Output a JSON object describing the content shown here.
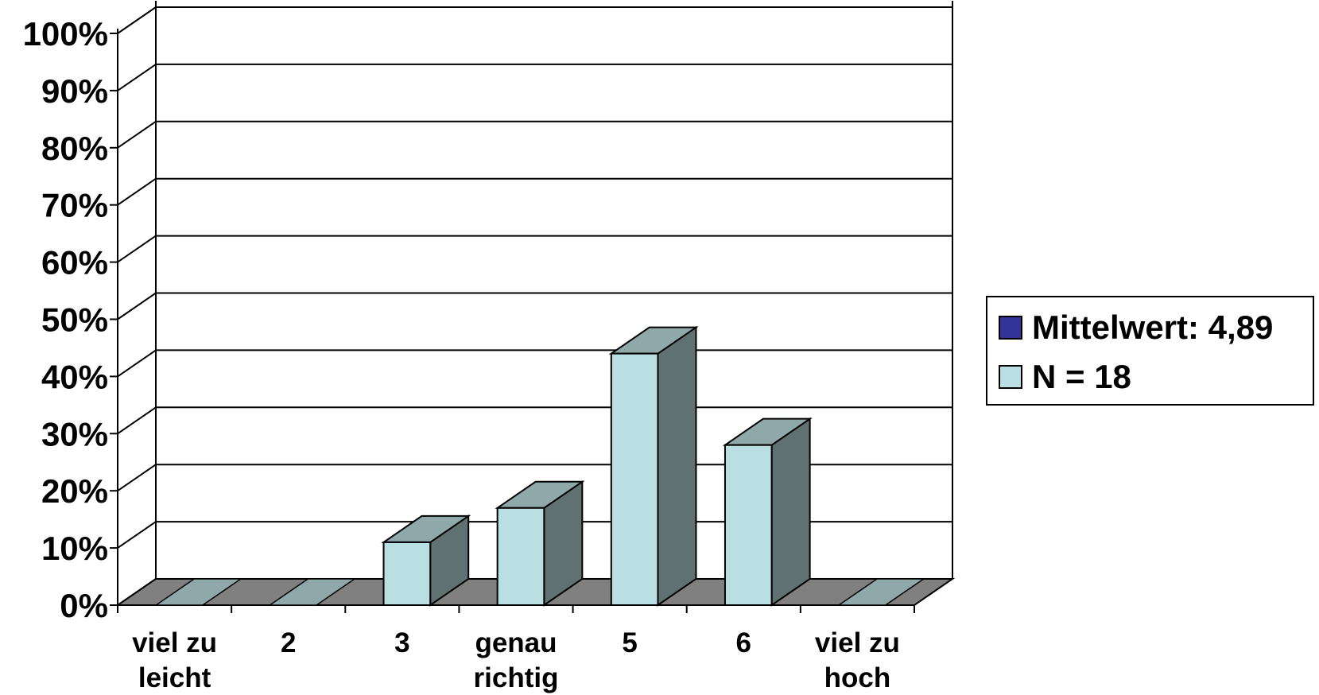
{
  "chart_data": {
    "type": "bar",
    "categories": [
      "viel zu leicht",
      "2",
      "3",
      "genau richtig",
      "5",
      "6",
      "viel zu hoch"
    ],
    "values": [
      0,
      0,
      11,
      17,
      44,
      28,
      0
    ],
    "y_ticks": [
      "0%",
      "10%",
      "20%",
      "30%",
      "40%",
      "50%",
      "60%",
      "70%",
      "80%",
      "90%",
      "100%"
    ],
    "ylim": [
      0,
      100
    ],
    "grid": true,
    "three_d": true,
    "legend": {
      "placement": "right",
      "entries": [
        {
          "label": "Mittelwert: 4,89",
          "color": "#333399"
        },
        {
          "label": "N = 18",
          "color": "#b9dfe3"
        }
      ]
    },
    "colors": {
      "bar_front": "#b9dfe3",
      "bar_top": "#8fa9ab",
      "bar_side": "#5f7171",
      "floor": "#808080",
      "zero_bar": "#8fa9ab"
    }
  }
}
